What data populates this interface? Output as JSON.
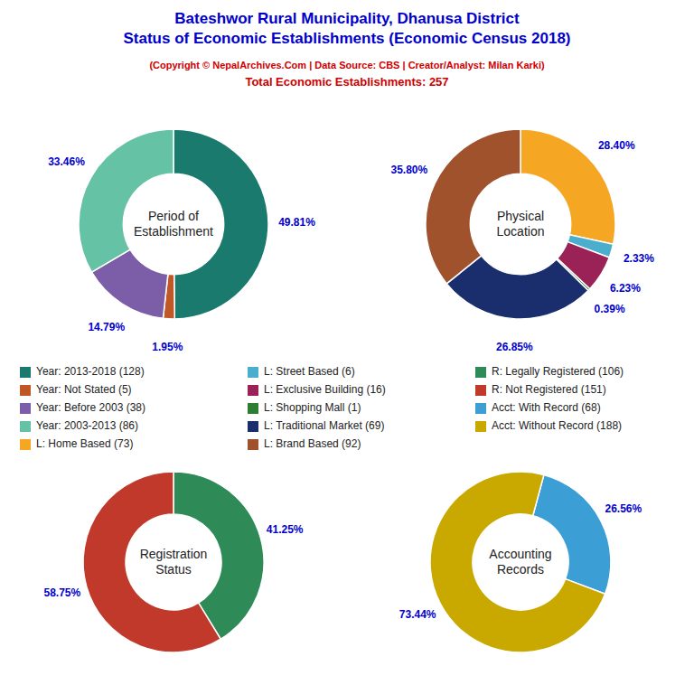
{
  "title": "Bateshwor Rural Municipality, Dhanusa District\nStatus of Economic Establishments (Economic Census 2018)",
  "subtitle": "(Copyright © NepalArchives.Com | Data Source: CBS | Creator/Analyst: Milan Karki)",
  "annotations": [
    "Total Economic Establishments: 257"
  ],
  "chart_data": [
    {
      "type": "pie",
      "title": "Period of\nEstablishment",
      "categories": [
        "Year: 2013-2018 (128)",
        "Year: Not Stated (5)",
        "Year: Before 2003 (38)",
        "Year: 2003-2013 (86)"
      ],
      "values": [
        49.81,
        1.95,
        14.79,
        33.46
      ],
      "value_labels": [
        "49.81%",
        "1.95%",
        "14.79%",
        "33.46%"
      ],
      "colors": [
        "#1a7a6e",
        "#C05726",
        "#7B5EA7",
        "#66c2a5"
      ],
      "data_labels": true,
      "legend": "center"
    },
    {
      "type": "pie",
      "title": "Physical\nLocation",
      "categories": [
        "L: Home Based (73)",
        "L: Street Based (6)",
        "L: Exclusive Building (16)",
        "L: Shopping Mall (1)",
        "L: Traditional Market (69)",
        "L: Brand Based (92)"
      ],
      "values": [
        28.4,
        2.33,
        6.23,
        0.39,
        26.85,
        35.8
      ],
      "value_labels": [
        "28.40%",
        "2.33%",
        "6.23%",
        "0.39%",
        "26.85%",
        "35.80%"
      ],
      "colors": [
        "#F5A623",
        "#4AAECC",
        "#9B2257",
        "#2e7d32",
        "#1a2e6e",
        "#A0522D"
      ],
      "data_labels": true,
      "legend": "center"
    },
    {
      "type": "pie",
      "title": "Registration\nStatus",
      "categories": [
        "R: Legally Registered (106)",
        "R: Not Registered (151)"
      ],
      "values": [
        41.25,
        58.75
      ],
      "value_labels": [
        "41.25%",
        "58.75%"
      ],
      "colors": [
        "#2e8b57",
        "#C0392B"
      ],
      "data_labels": true,
      "legend": "center"
    },
    {
      "type": "pie",
      "title": "Accounting\nRecords",
      "categories": [
        "Acct: With Record (68)",
        "Acct: Without Record (188)"
      ],
      "values": [
        26.56,
        73.44
      ],
      "value_labels": [
        "26.56%",
        "73.44%"
      ],
      "colors": [
        "#3B9ED4",
        "#C9A800"
      ],
      "data_labels": true,
      "legend": "center"
    }
  ]
}
